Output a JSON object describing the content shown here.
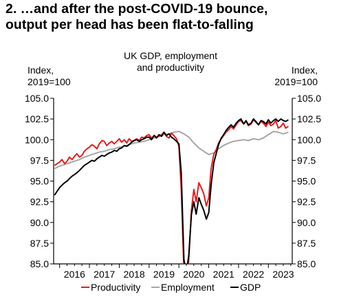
{
  "headline": {
    "line1": "2. …and after the post-COVID-19 bounce,",
    "line2": "output per head has been flat-to-falling"
  },
  "chart_data": {
    "type": "line",
    "title_line1": "UK GDP, employment",
    "title_line2": "and productivity",
    "ylabel_left_line1": "Index,",
    "ylabel_left_line2": "2019=100",
    "ylabel_right_line1": "Index,",
    "ylabel_right_line2": "2019=100",
    "ylim": [
      85.0,
      105.0
    ],
    "yticks": [
      "105.0",
      "102.5",
      "100.0",
      "97.5",
      "95.0",
      "92.5",
      "90.0",
      "87.5",
      "85.0"
    ],
    "xticks": [
      "2016",
      "2017",
      "2018",
      "2019",
      "2020",
      "2021",
      "2022",
      "2023"
    ],
    "xlim": [
      2015.8,
      2023.8
    ],
    "legend_position": "bottom",
    "legend": [
      "Productivity",
      "Employment",
      "GDP"
    ],
    "grid": false,
    "series": [
      {
        "name": "Productivity",
        "color": "#e8191c",
        "x": [
          2015.83,
          2015.92,
          2016.0,
          2016.08,
          2016.17,
          2016.25,
          2016.33,
          2016.42,
          2016.5,
          2016.58,
          2016.67,
          2016.75,
          2016.83,
          2016.92,
          2017.0,
          2017.08,
          2017.17,
          2017.25,
          2017.33,
          2017.42,
          2017.5,
          2017.58,
          2017.67,
          2017.75,
          2017.83,
          2017.92,
          2018.0,
          2018.08,
          2018.17,
          2018.25,
          2018.33,
          2018.42,
          2018.5,
          2018.58,
          2018.67,
          2018.75,
          2018.83,
          2018.92,
          2019.0,
          2019.08,
          2019.17,
          2019.25,
          2019.33,
          2019.42,
          2019.5,
          2019.58,
          2019.67,
          2019.75,
          2019.83,
          2019.92,
          2020.0,
          2020.08,
          2020.17,
          2020.25,
          2020.33,
          2020.42,
          2020.5,
          2020.58,
          2020.67,
          2020.75,
          2020.83,
          2020.92,
          2021.0,
          2021.08,
          2021.17,
          2021.25,
          2021.33,
          2021.42,
          2021.5,
          2021.58,
          2021.67,
          2021.75,
          2021.83,
          2021.92,
          2022.0,
          2022.08,
          2022.17,
          2022.25,
          2022.33,
          2022.42,
          2022.5,
          2022.58,
          2022.67,
          2022.75,
          2022.83,
          2022.92,
          2023.0,
          2023.08,
          2023.17,
          2023.25,
          2023.33,
          2023.42,
          2023.5,
          2023.58,
          2023.67
        ],
        "values": [
          96.9,
          97.1,
          97.3,
          97.6,
          97.1,
          97.4,
          97.9,
          97.6,
          98.0,
          98.3,
          97.9,
          98.1,
          98.6,
          98.9,
          99.1,
          99.4,
          99.2,
          98.9,
          99.5,
          99.9,
          99.8,
          99.3,
          99.6,
          99.8,
          99.5,
          99.8,
          100.1,
          99.7,
          100.0,
          99.6,
          100.1,
          99.8,
          99.9,
          100.1,
          99.9,
          100.3,
          100.2,
          100.5,
          100.6,
          100.2,
          100.5,
          100.3,
          100.4,
          100.6,
          100.9,
          100.4,
          100.2,
          100.8,
          100.5,
          100.1,
          99.2,
          94.0,
          84.0,
          82.0,
          85.5,
          91.5,
          94.0,
          92.5,
          94.8,
          94.2,
          93.5,
          92.0,
          93.0,
          96.5,
          98.2,
          98.8,
          99.6,
          100.1,
          100.5,
          100.9,
          101.2,
          101.6,
          101.3,
          101.8,
          102.2,
          102.3,
          101.9,
          102.2,
          101.7,
          101.9,
          102.4,
          102.1,
          101.8,
          102.2,
          102.0,
          101.6,
          102.1,
          101.7,
          101.9,
          102.3,
          101.4,
          101.6,
          102.0,
          101.4,
          101.6
        ]
      },
      {
        "name": "Employment",
        "color": "#a6a6a6",
        "x": [
          2015.83,
          2016.0,
          2016.17,
          2016.33,
          2016.5,
          2016.67,
          2016.83,
          2017.0,
          2017.17,
          2017.33,
          2017.5,
          2017.67,
          2017.83,
          2018.0,
          2018.17,
          2018.33,
          2018.5,
          2018.67,
          2018.83,
          2019.0,
          2019.17,
          2019.33,
          2019.5,
          2019.67,
          2019.83,
          2020.0,
          2020.17,
          2020.33,
          2020.5,
          2020.67,
          2020.83,
          2021.0,
          2021.17,
          2021.33,
          2021.5,
          2021.67,
          2021.83,
          2022.0,
          2022.17,
          2022.33,
          2022.5,
          2022.67,
          2022.83,
          2023.0,
          2023.17,
          2023.33,
          2023.5,
          2023.67
        ],
        "values": [
          96.5,
          96.8,
          97.0,
          97.2,
          97.4,
          97.6,
          97.9,
          98.1,
          98.3,
          98.5,
          98.6,
          98.8,
          98.9,
          99.1,
          99.2,
          99.4,
          99.6,
          99.7,
          99.8,
          100.0,
          100.2,
          100.4,
          100.6,
          100.7,
          100.9,
          101.0,
          100.7,
          100.3,
          99.6,
          99.0,
          98.6,
          98.2,
          98.4,
          98.9,
          99.3,
          99.6,
          99.8,
          99.9,
          100.0,
          99.9,
          100.1,
          100.0,
          100.2,
          100.6,
          101.0,
          100.9,
          100.7,
          100.9
        ]
      },
      {
        "name": "GDP",
        "color": "#000000",
        "x": [
          2015.83,
          2015.92,
          2016.0,
          2016.08,
          2016.17,
          2016.25,
          2016.33,
          2016.42,
          2016.5,
          2016.58,
          2016.67,
          2016.75,
          2016.83,
          2016.92,
          2017.0,
          2017.08,
          2017.17,
          2017.25,
          2017.33,
          2017.42,
          2017.5,
          2017.58,
          2017.67,
          2017.75,
          2017.83,
          2017.92,
          2018.0,
          2018.08,
          2018.17,
          2018.25,
          2018.33,
          2018.42,
          2018.5,
          2018.58,
          2018.67,
          2018.75,
          2018.83,
          2018.92,
          2019.0,
          2019.08,
          2019.17,
          2019.25,
          2019.33,
          2019.42,
          2019.5,
          2019.58,
          2019.67,
          2019.75,
          2019.83,
          2019.92,
          2020.0,
          2020.08,
          2020.17,
          2020.25,
          2020.33,
          2020.42,
          2020.5,
          2020.58,
          2020.67,
          2020.75,
          2020.83,
          2020.92,
          2021.0,
          2021.08,
          2021.17,
          2021.25,
          2021.33,
          2021.42,
          2021.5,
          2021.58,
          2021.67,
          2021.75,
          2021.83,
          2021.92,
          2022.0,
          2022.08,
          2022.17,
          2022.25,
          2022.33,
          2022.42,
          2022.5,
          2022.58,
          2022.67,
          2022.75,
          2022.83,
          2022.92,
          2023.0,
          2023.08,
          2023.17,
          2023.25,
          2023.33,
          2023.42,
          2023.5,
          2023.58,
          2023.67
        ],
        "values": [
          93.3,
          93.8,
          94.2,
          94.5,
          94.8,
          95.0,
          95.3,
          95.6,
          95.8,
          96.0,
          96.3,
          96.6,
          96.9,
          97.1,
          97.3,
          97.5,
          97.4,
          97.7,
          97.9,
          98.1,
          98.0,
          98.2,
          98.4,
          98.5,
          98.7,
          98.6,
          98.9,
          99.0,
          99.3,
          99.2,
          99.4,
          99.7,
          99.9,
          100.0,
          99.8,
          100.0,
          100.1,
          100.3,
          100.3,
          100.0,
          100.5,
          100.2,
          100.6,
          100.4,
          100.9,
          100.5,
          100.7,
          100.3,
          100.1,
          99.8,
          99.5,
          96.0,
          85.5,
          84.0,
          86.0,
          91.0,
          92.5,
          91.0,
          93.0,
          92.2,
          91.5,
          90.4,
          91.2,
          94.5,
          97.2,
          98.3,
          99.4,
          100.2,
          100.6,
          101.1,
          101.5,
          101.8,
          101.5,
          102.0,
          102.3,
          102.5,
          101.9,
          102.3,
          101.8,
          102.0,
          102.5,
          102.2,
          101.8,
          102.3,
          102.2,
          101.9,
          102.4,
          102.0,
          102.3,
          102.5,
          102.2,
          102.5,
          102.3,
          102.2,
          102.4
        ]
      }
    ]
  }
}
